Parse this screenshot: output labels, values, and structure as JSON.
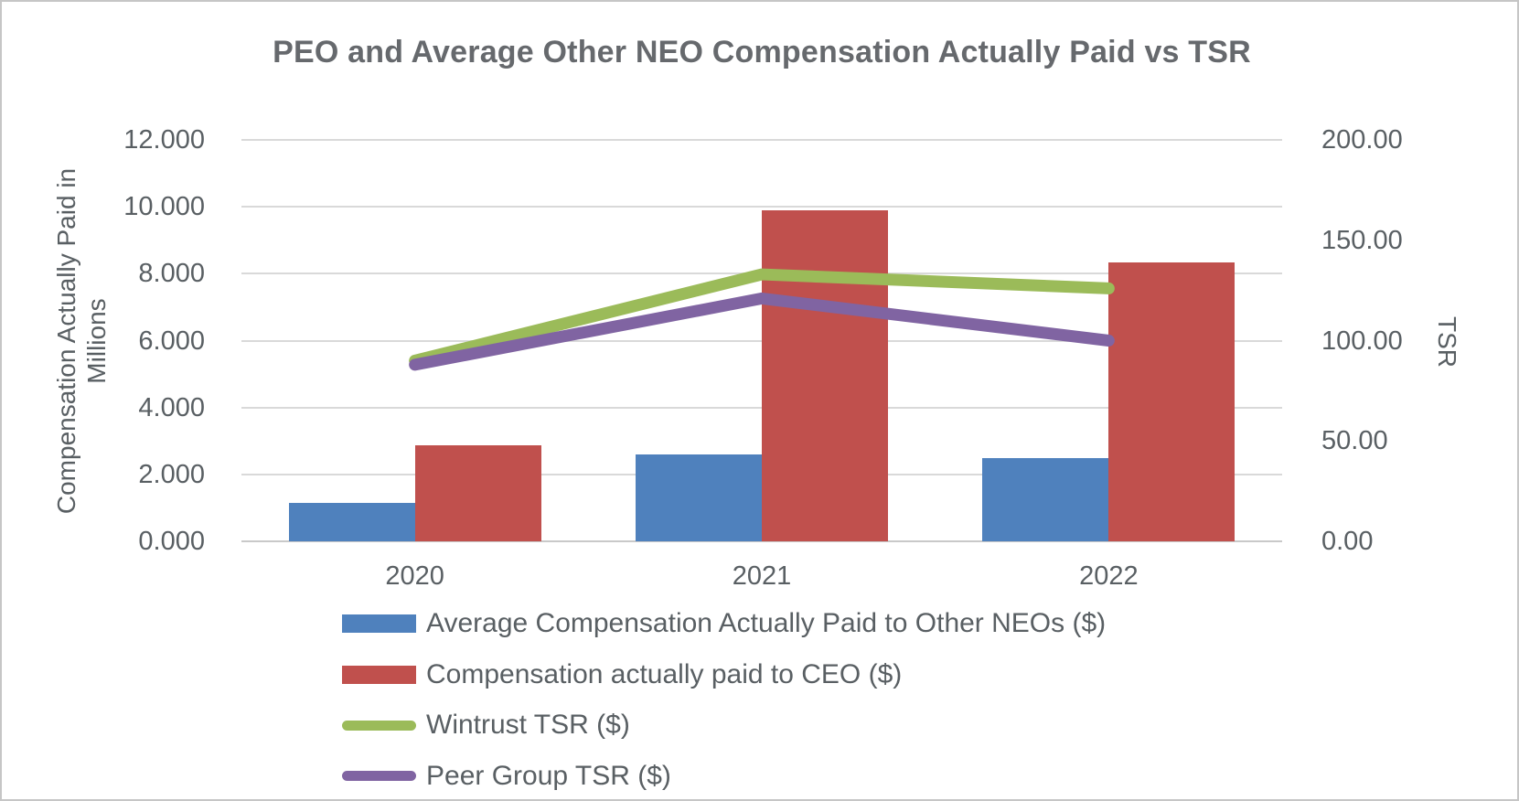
{
  "chart_data": {
    "type": "bar",
    "subtype": "combo-bar-line-dual-axis",
    "title": "PEO and Average Other NEO Compensation Actually Paid vs TSR",
    "categories": [
      "2020",
      "2021",
      "2022"
    ],
    "series": [
      {
        "name": "Average Compensation Actually Paid to Other NEOs ($)",
        "kind": "bar",
        "axis": "left",
        "color": "#4F81BD",
        "values": [
          1.15,
          2.6,
          2.5
        ]
      },
      {
        "name": "Compensation actually paid to CEO ($)",
        "kind": "bar",
        "axis": "left",
        "color": "#C0504D",
        "values": [
          2.87,
          9.9,
          8.35
        ]
      },
      {
        "name": "Wintrust TSR ($)",
        "kind": "line",
        "axis": "right",
        "color": "#9BBB59",
        "values": [
          90,
          133,
          126
        ]
      },
      {
        "name": "Peer Group TSR ($)",
        "kind": "line",
        "axis": "right",
        "color": "#8064A2",
        "values": [
          88,
          121,
          100
        ]
      }
    ],
    "left_axis": {
      "label": "Compensation Actually Paid in Millions",
      "min": 0,
      "max": 12,
      "ticks": [
        "12.000",
        "10.000",
        "8.000",
        "6.000",
        "4.000",
        "2.000",
        "0.000"
      ]
    },
    "right_axis": {
      "label": "TSR",
      "min": 0,
      "max": 200,
      "ticks": [
        "200.00",
        "150.00",
        "100.00",
        "50.00",
        "0.00"
      ]
    },
    "grid": true,
    "legend_position": "bottom-left",
    "text_color": "#595f63",
    "gridline_color": "#d9d9d9"
  }
}
